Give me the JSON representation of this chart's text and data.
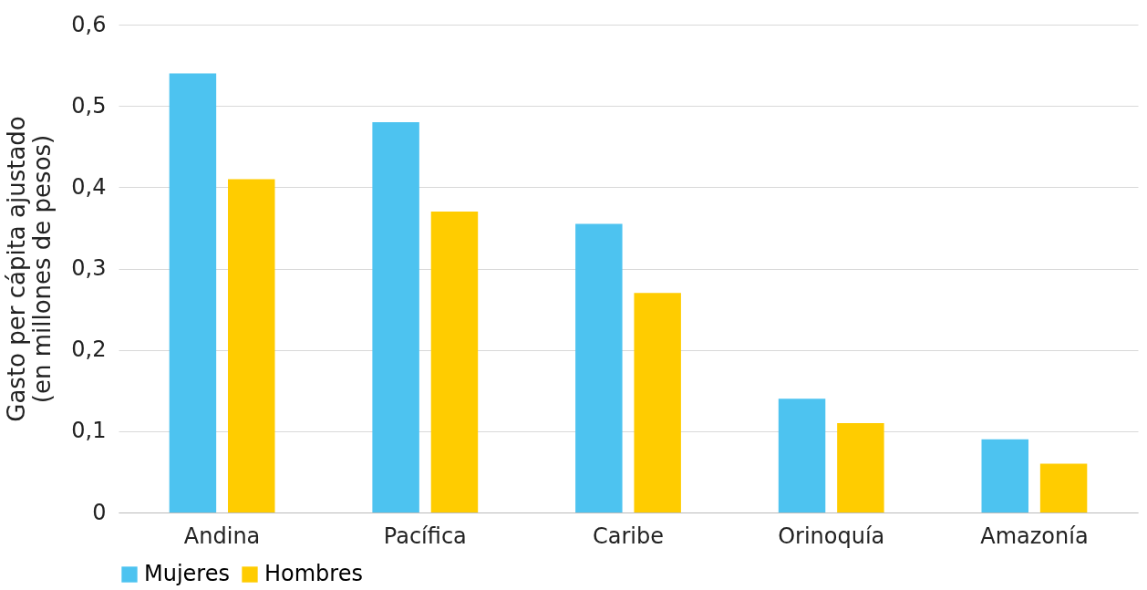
{
  "chart_data": {
    "type": "bar",
    "ylabel": "Gasto per cápita ajustado\n(en millones de pesos)",
    "categories": [
      "Andina",
      "Pacífica",
      "Caribe",
      "Orinoquía",
      "Amazonía"
    ],
    "series": [
      {
        "name": "Mujeres",
        "color": "#4dc3f0",
        "values": [
          0.54,
          0.48,
          0.355,
          0.14,
          0.09
        ]
      },
      {
        "name": "Hombres",
        "color": "#ffcc00",
        "values": [
          0.41,
          0.37,
          0.27,
          0.11,
          0.06
        ]
      }
    ],
    "ylim": [
      0,
      0.6
    ],
    "yticks": [
      0,
      {
        "value": 0.1,
        "label": "0,1"
      },
      {
        "value": 0.2,
        "label": "0,2"
      },
      {
        "value": 0.3,
        "label": "0,3"
      },
      {
        "value": 0.4,
        "label": "0,4"
      },
      {
        "value": 0.5,
        "label": "0,5"
      },
      {
        "value": 0.6,
        "label": "0,6"
      }
    ],
    "grid": "y",
    "legend": "bottom"
  }
}
